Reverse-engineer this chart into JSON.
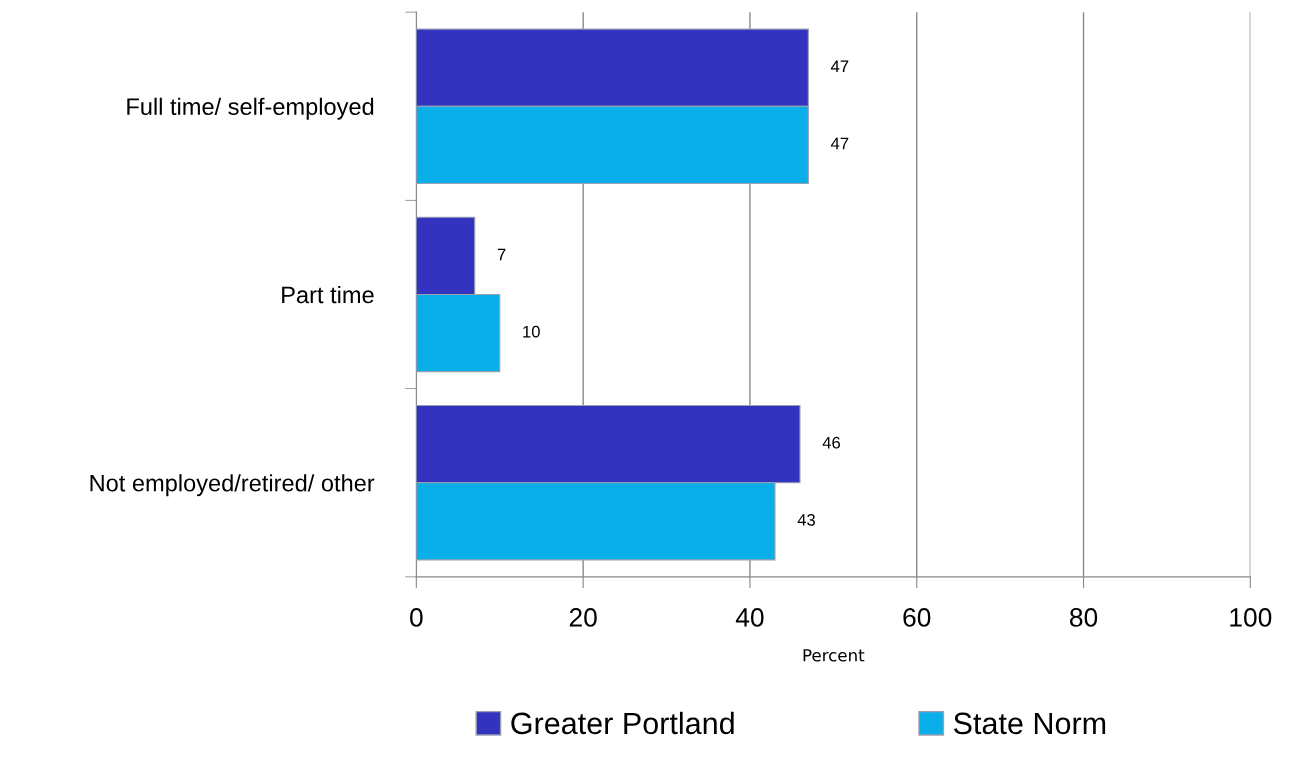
{
  "chart_data": {
    "type": "bar",
    "orientation": "horizontal",
    "xlabel": "Percent",
    "categories": [
      "Full time/ self-employed",
      "Part time",
      "Not employed/retired/ other"
    ],
    "series": [
      {
        "name": "Greater Portland",
        "color": "#3333c0",
        "values": [
          47,
          7,
          46
        ]
      },
      {
        "name": "State Norm",
        "color": "#0aaee8",
        "values": [
          47,
          10,
          43
        ]
      }
    ],
    "xlim": [
      0,
      100
    ],
    "xticks": [
      0,
      20,
      40,
      60,
      80,
      100
    ],
    "grid": "x",
    "legend": "bottom",
    "data_labels": true
  }
}
